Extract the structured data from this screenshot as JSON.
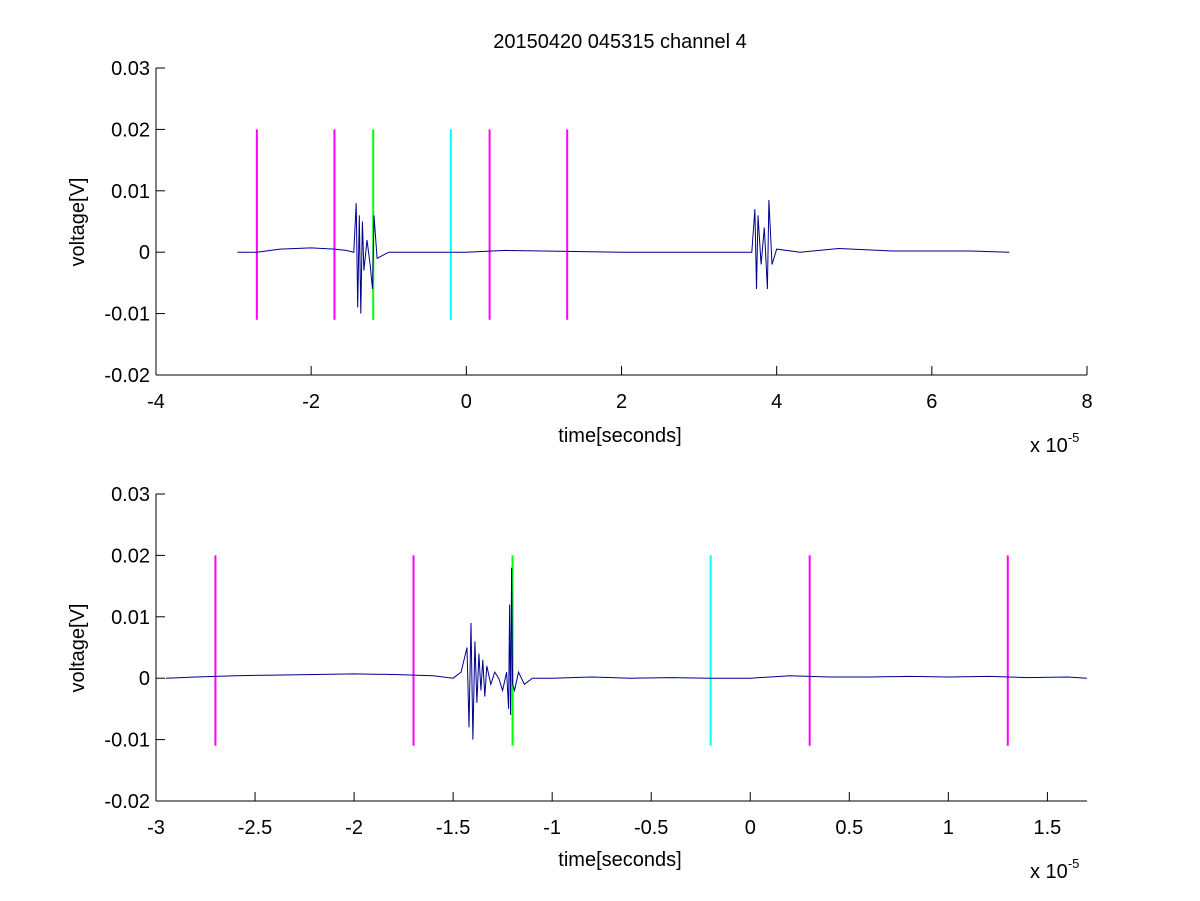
{
  "figure_title": "20150420 045315 channel 4",
  "colors": {
    "signal": "#00008b",
    "magenta_marker": "#ff00ff",
    "green_marker": "#00ff00",
    "cyan_marker": "#00ffff",
    "axes": "#000000"
  },
  "chart_data": [
    {
      "type": "line",
      "title": "20150420 045315 channel 4",
      "xlabel": "time[seconds]",
      "ylabel": "voltage[V]",
      "x_exponent_label": "x 10",
      "x_exponent": "-5",
      "xlim": [
        -4,
        8
      ],
      "ylim": [
        -0.02,
        0.03
      ],
      "x_ticks": [
        -4,
        -2,
        0,
        2,
        4,
        6,
        8
      ],
      "x_tick_labels": [
        "-4",
        "-2",
        "0",
        "2",
        "4",
        "6",
        "8"
      ],
      "y_ticks": [
        -0.02,
        -0.01,
        0,
        0.01,
        0.02,
        0.03
      ],
      "y_tick_labels": [
        "-0.02",
        "-0.01",
        "0",
        "0.01",
        "0.02",
        "0.03"
      ],
      "grid": false,
      "series": [
        {
          "color": "#00008b",
          "x": [
            -2.95,
            -2.7,
            -2.4,
            -2.0,
            -1.7,
            -1.55,
            -1.45,
            -1.42,
            -1.4,
            -1.38,
            -1.36,
            -1.34,
            -1.32,
            -1.28,
            -1.24,
            -1.21,
            -1.19,
            -1.15,
            -1.0,
            -0.5,
            0.0,
            0.5,
            1.0,
            2.0,
            3.0,
            3.5,
            3.68,
            3.72,
            3.74,
            3.76,
            3.8,
            3.84,
            3.88,
            3.9,
            3.94,
            4.0,
            4.3,
            4.8,
            5.5,
            6.5,
            7.0
          ],
          "y": [
            0.0,
            0.0,
            0.0005,
            0.0007,
            0.0005,
            0.0003,
            0.0,
            0.008,
            -0.009,
            0.006,
            -0.01,
            0.005,
            -0.003,
            0.002,
            -0.002,
            -0.006,
            0.006,
            -0.001,
            0.0,
            0.0,
            0.0,
            0.0003,
            0.0002,
            0.0,
            0.0,
            0.0,
            0.0,
            0.007,
            -0.006,
            0.006,
            -0.002,
            0.004,
            -0.006,
            0.0085,
            -0.002,
            0.0005,
            0.0,
            0.0006,
            0.0002,
            0.0002,
            0.0
          ]
        }
      ],
      "markers": [
        {
          "x": -2.7,
          "y0": -0.011,
          "y1": 0.02,
          "color": "#ff00ff"
        },
        {
          "x": -1.7,
          "y0": -0.011,
          "y1": 0.02,
          "color": "#ff00ff"
        },
        {
          "x": -1.2,
          "y0": -0.011,
          "y1": 0.02,
          "color": "#00ff00"
        },
        {
          "x": -0.2,
          "y0": -0.011,
          "y1": 0.02,
          "color": "#00ffff"
        },
        {
          "x": 0.3,
          "y0": -0.011,
          "y1": 0.02,
          "color": "#ff00ff"
        },
        {
          "x": 1.3,
          "y0": -0.011,
          "y1": 0.02,
          "color": "#ff00ff"
        }
      ]
    },
    {
      "type": "line",
      "title": "",
      "xlabel": "time[seconds]",
      "ylabel": "voltage[V]",
      "x_exponent_label": "x 10",
      "x_exponent": "-5",
      "xlim": [
        -3.0,
        1.7
      ],
      "ylim": [
        -0.02,
        0.03
      ],
      "x_ticks": [
        -3,
        -2.5,
        -2,
        -1.5,
        -1,
        -0.5,
        0,
        0.5,
        1,
        1.5
      ],
      "x_tick_labels": [
        "-3",
        "-2.5",
        "-2",
        "-1.5",
        "-1",
        "-0.5",
        "0",
        "0.5",
        "1",
        "1.5"
      ],
      "y_ticks": [
        -0.02,
        -0.01,
        0,
        0.01,
        0.02,
        0.03
      ],
      "y_tick_labels": [
        "-0.02",
        "-0.01",
        "0",
        "0.01",
        "0.02",
        "0.03"
      ],
      "grid": false,
      "series": [
        {
          "color": "#00008b",
          "x": [
            -2.95,
            -2.8,
            -2.6,
            -2.4,
            -2.2,
            -2.0,
            -1.8,
            -1.6,
            -1.5,
            -1.46,
            -1.43,
            -1.42,
            -1.41,
            -1.4,
            -1.39,
            -1.38,
            -1.37,
            -1.36,
            -1.35,
            -1.34,
            -1.33,
            -1.31,
            -1.29,
            -1.27,
            -1.25,
            -1.23,
            -1.22,
            -1.215,
            -1.21,
            -1.205,
            -1.2,
            -1.19,
            -1.17,
            -1.14,
            -1.1,
            -1.0,
            -0.8,
            -0.6,
            -0.4,
            -0.2,
            0.0,
            0.2,
            0.4,
            0.6,
            0.8,
            1.0,
            1.2,
            1.4,
            1.6,
            1.7
          ],
          "y": [
            0.0,
            0.0002,
            0.0004,
            0.0005,
            0.0006,
            0.0007,
            0.0006,
            0.0004,
            0.0,
            0.001,
            0.005,
            -0.008,
            0.009,
            -0.01,
            0.006,
            -0.004,
            0.004,
            -0.002,
            0.003,
            -0.003,
            0.002,
            -0.001,
            0.001,
            0.0,
            -0.002,
            0.001,
            -0.005,
            0.012,
            -0.006,
            0.018,
            -0.001,
            -0.002,
            0.001,
            -0.001,
            0.0,
            0.0,
            0.0002,
            0.0,
            0.0001,
            0.0,
            0.0,
            0.0004,
            0.0002,
            0.0002,
            0.0003,
            0.0002,
            0.0003,
            0.0001,
            0.0002,
            0.0
          ]
        }
      ],
      "markers": [
        {
          "x": -2.7,
          "y0": -0.011,
          "y1": 0.02,
          "color": "#ff00ff"
        },
        {
          "x": -1.7,
          "y0": -0.011,
          "y1": 0.02,
          "color": "#ff00ff"
        },
        {
          "x": -1.2,
          "y0": -0.011,
          "y1": 0.02,
          "color": "#00ff00"
        },
        {
          "x": -0.2,
          "y0": -0.011,
          "y1": 0.02,
          "color": "#00ffff"
        },
        {
          "x": 0.3,
          "y0": -0.011,
          "y1": 0.02,
          "color": "#ff00ff"
        },
        {
          "x": 1.3,
          "y0": -0.011,
          "y1": 0.02,
          "color": "#ff00ff"
        }
      ]
    }
  ]
}
